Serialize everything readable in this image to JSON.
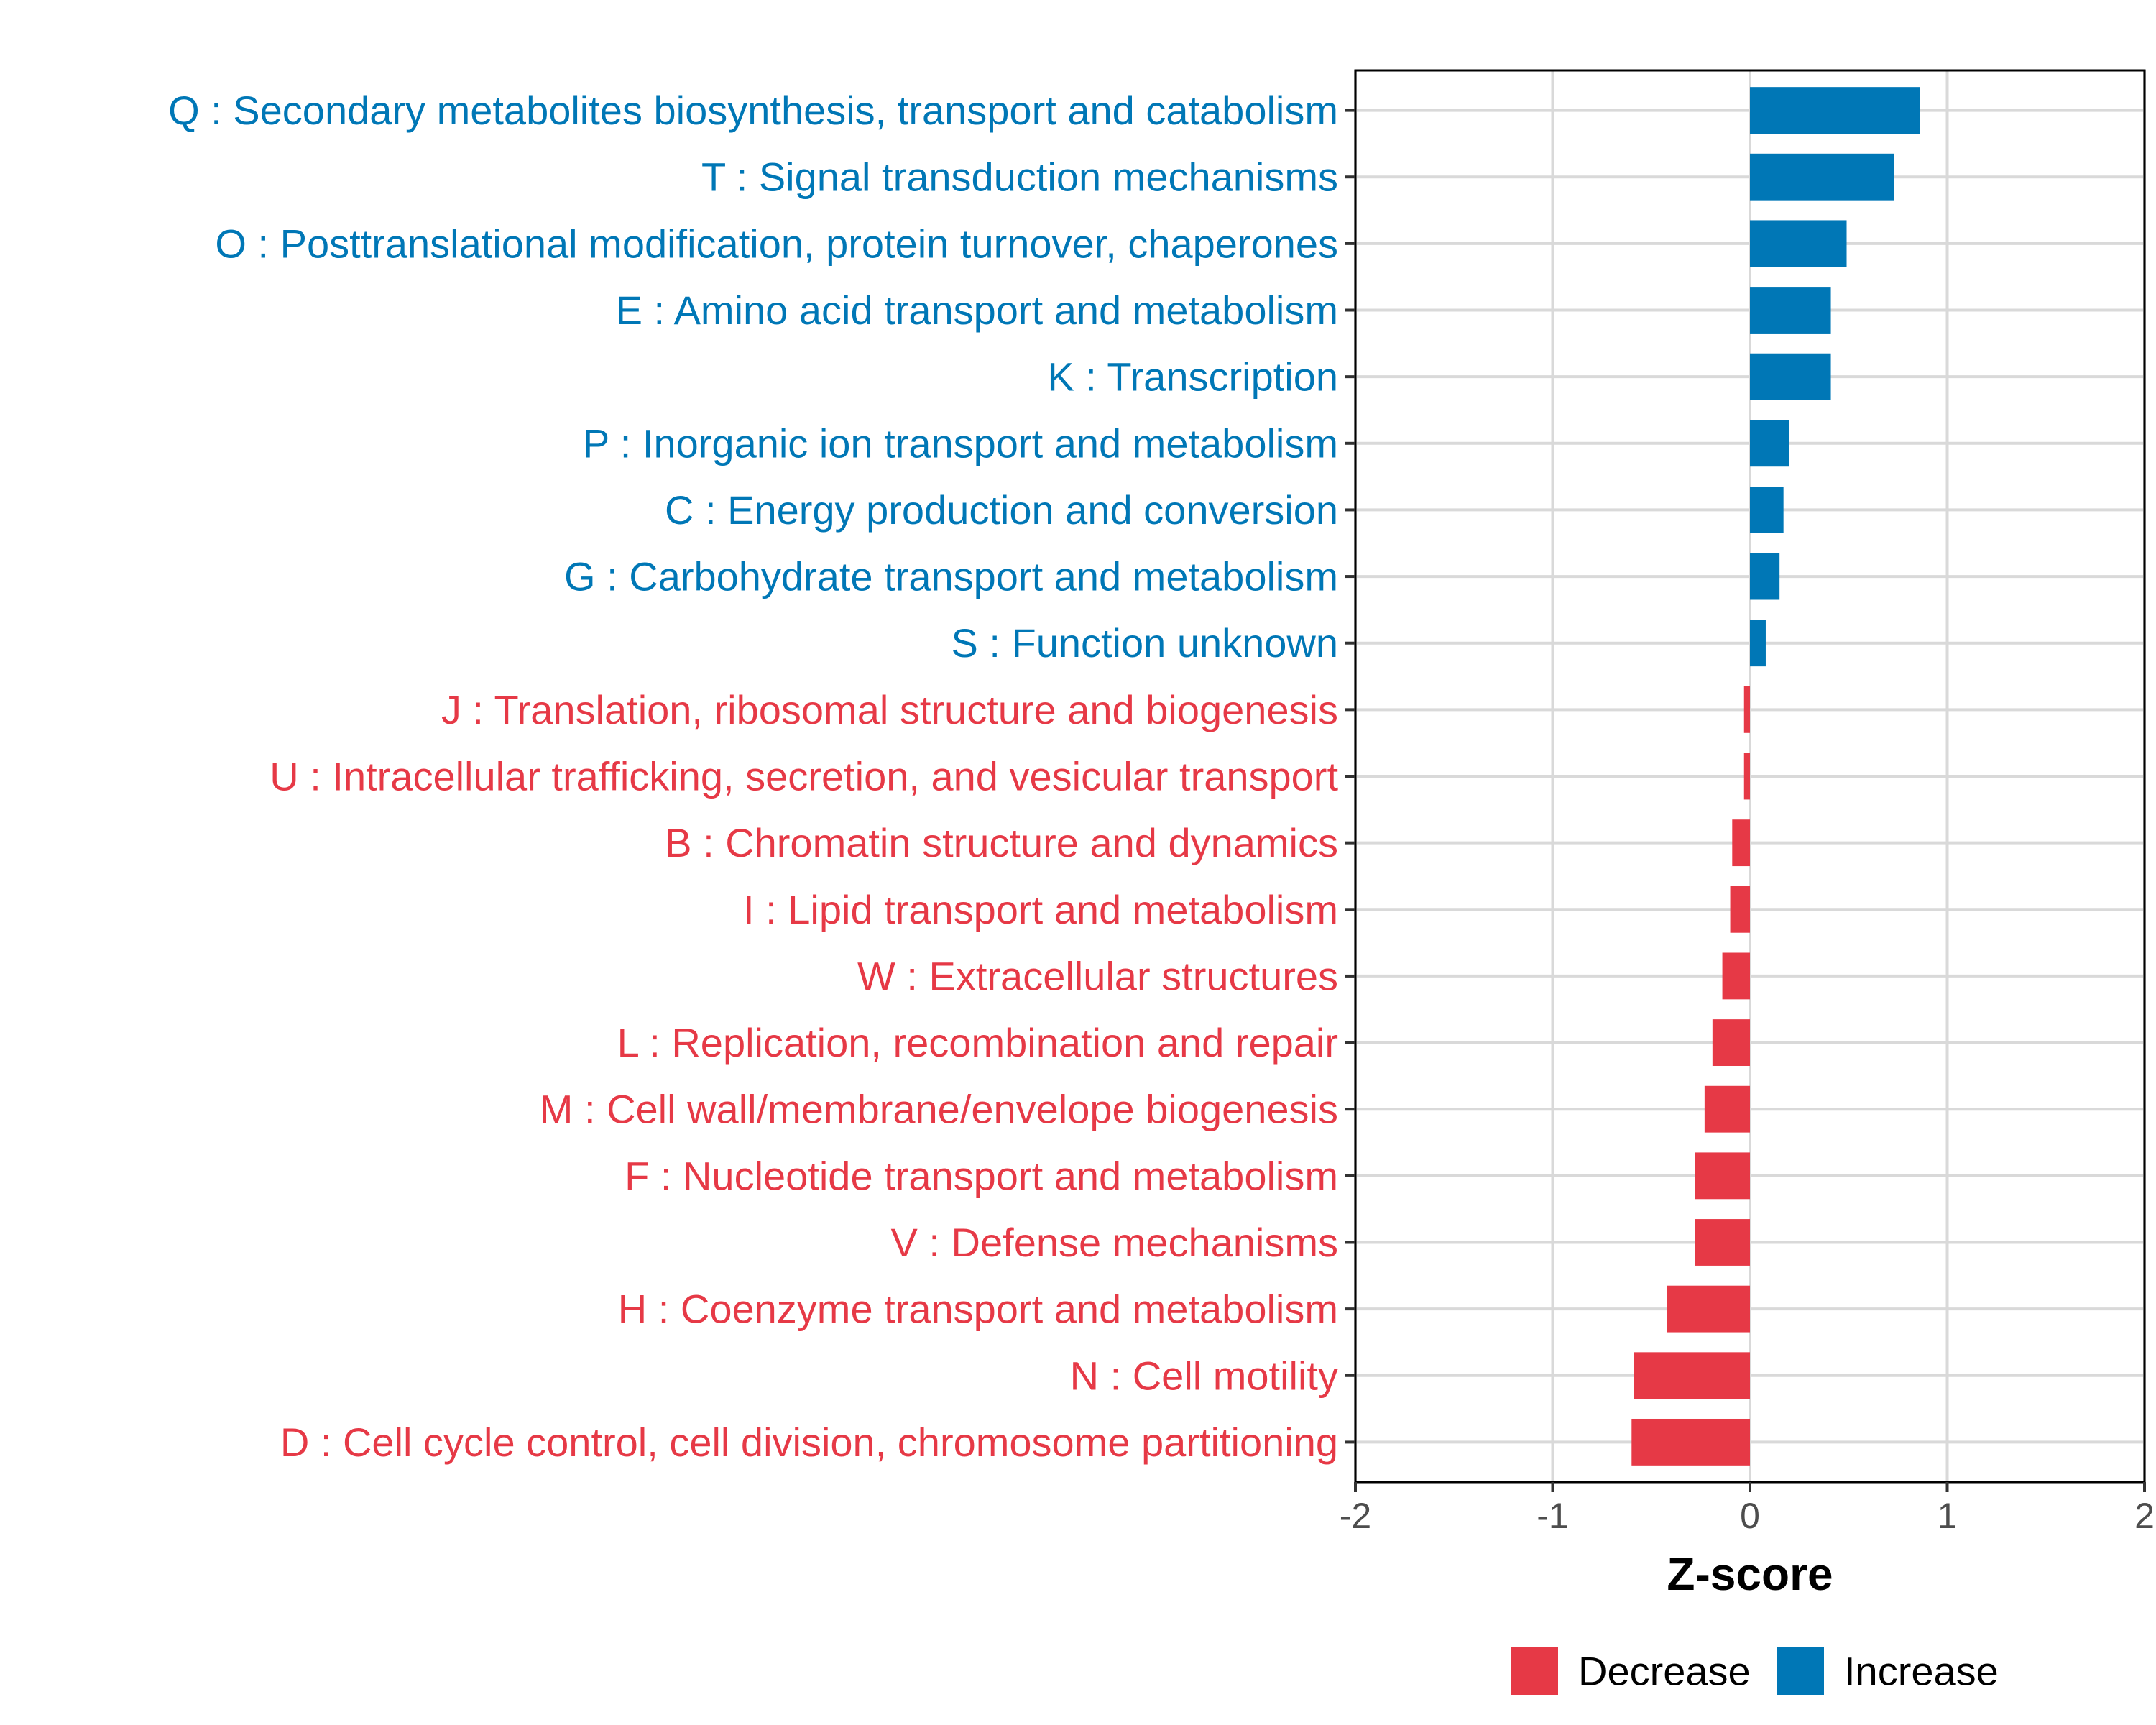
{
  "chart_data": {
    "type": "bar",
    "orientation": "horizontal",
    "title": "",
    "xlabel": "Z-score",
    "ylabel": "",
    "xlim": [
      -2,
      2
    ],
    "xticks": [
      -2,
      -1,
      0,
      1,
      2
    ],
    "xtick_labels": [
      "-2",
      "-1",
      "0",
      "1",
      "2"
    ],
    "grid": true,
    "legend_position": "bottom",
    "categories": [
      "Q : Secondary metabolites biosynthesis, transport and catabolism",
      "T : Signal transduction mechanisms",
      "O : Posttranslational modification, protein turnover, chaperones",
      "E : Amino acid transport and metabolism",
      "K : Transcription",
      "P : Inorganic ion transport and metabolism",
      "C : Energy production and conversion",
      "G : Carbohydrate transport and metabolism",
      "S : Function unknown",
      "J : Translation, ribosomal structure and biogenesis",
      "U : Intracellular trafficking, secretion, and vesicular transport",
      "B : Chromatin structure and dynamics",
      "I : Lipid transport and metabolism",
      "W : Extracellular structures",
      "L : Replication, recombination and repair",
      "M : Cell wall/membrane/envelope biogenesis",
      "F : Nucleotide transport and metabolism",
      "V : Defense mechanisms",
      "H : Coenzyme transport and metabolism",
      "N : Cell motility",
      "D : Cell cycle control, cell division, chromosome partitioning"
    ],
    "values": [
      0.86,
      0.73,
      0.49,
      0.41,
      0.41,
      0.2,
      0.17,
      0.15,
      0.08,
      -0.03,
      -0.03,
      -0.09,
      -0.1,
      -0.14,
      -0.19,
      -0.23,
      -0.28,
      -0.28,
      -0.42,
      -0.59,
      -0.6
    ],
    "groups": [
      "Increase",
      "Increase",
      "Increase",
      "Increase",
      "Increase",
      "Increase",
      "Increase",
      "Increase",
      "Increase",
      "Decrease",
      "Decrease",
      "Decrease",
      "Decrease",
      "Decrease",
      "Decrease",
      "Decrease",
      "Decrease",
      "Decrease",
      "Decrease",
      "Decrease",
      "Decrease"
    ],
    "legend": [
      {
        "name": "Decrease",
        "color": "#E63946"
      },
      {
        "name": "Increase",
        "color": "#0077B6"
      }
    ],
    "colors": {
      "Increase": "#0077B6",
      "Decrease": "#E63946"
    }
  }
}
